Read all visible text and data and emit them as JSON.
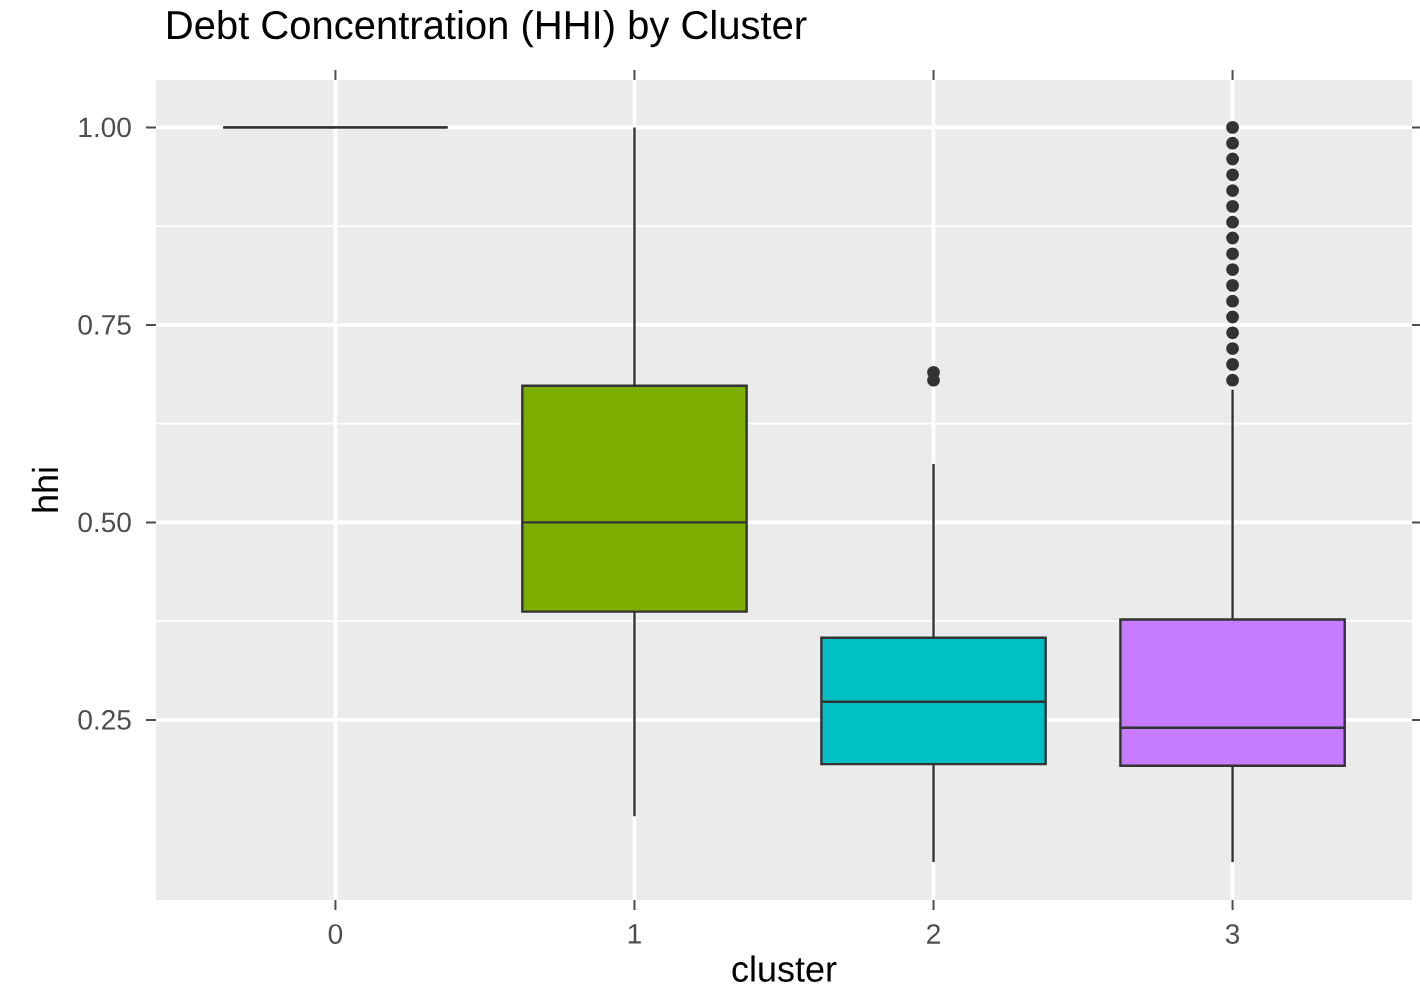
{
  "chart_data": {
    "type": "box",
    "title": "Debt Concentration (HHI) by Cluster",
    "xlabel": "cluster",
    "ylabel": "hhi",
    "categories": [
      "0",
      "1",
      "2",
      "3"
    ],
    "boxes": [
      {
        "low": 1.0,
        "q1": 1.0,
        "median": 1.0,
        "q3": 1.0,
        "high": 1.0
      },
      {
        "low": 0.128,
        "q1": 0.387,
        "median": 0.5,
        "q3": 0.673,
        "high": 1.0
      },
      {
        "low": 0.07,
        "q1": 0.194,
        "median": 0.273,
        "q3": 0.354,
        "high": 0.574,
        "outliers": [
          0.68,
          0.69
        ]
      },
      {
        "low": 0.07,
        "q1": 0.192,
        "median": 0.24,
        "q3": 0.377,
        "high": 0.668,
        "outliers": [
          0.68,
          0.7,
          0.72,
          0.74,
          0.76,
          0.78,
          0.8,
          0.82,
          0.84,
          0.86,
          0.88,
          0.9,
          0.92,
          0.94,
          0.96,
          0.98,
          1.0
        ]
      }
    ],
    "colors": [
      "#333333",
      "#7cae00",
      "#00bfc4",
      "#c77cff"
    ],
    "ylim": [
      0.022,
      1.06
    ],
    "yticks": [
      {
        "value": 0.25,
        "label": "0.25"
      },
      {
        "value": 0.5,
        "label": "0.50"
      },
      {
        "value": 0.75,
        "label": "0.75"
      },
      {
        "value": 1.0,
        "label": "1.00"
      }
    ],
    "grid": true
  }
}
